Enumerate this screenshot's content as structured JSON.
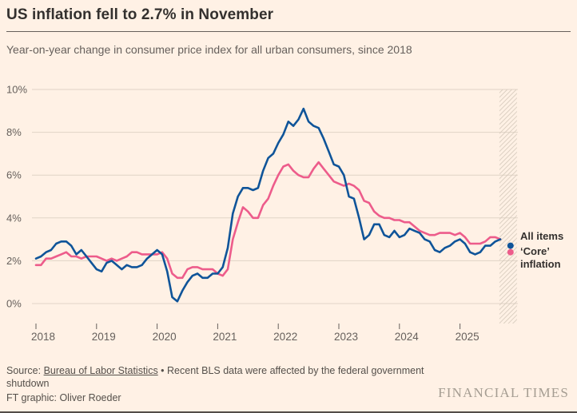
{
  "header": {
    "title": "US inflation fell to 2.7% in November",
    "subtitle": "Year-on-year change in consumer price index for all urban consumers, since 2018"
  },
  "annotations": {
    "all_items": "All items",
    "core": "‘Core’ inflation"
  },
  "footer": {
    "source_prefix": "Source: ",
    "source_link": "Bureau of Labor Statistics",
    "source_rest": " • Recent BLS data were affected by the federal government shutdown",
    "credit": "FT graphic: Oliver Roeder",
    "brand": "FINANCIAL TIMES"
  },
  "chart_data": {
    "type": "line",
    "title": "US inflation fell to 2.7% in November",
    "subtitle": "Year-on-year change in consumer price index for all urban consumers, since 2018",
    "grid": true,
    "legend_position": "right-annotations",
    "colors": {
      "background": "#FFF1E5",
      "gridline": "#E0D4C6",
      "axis": "#66605C",
      "all_items": "#0F5499",
      "core": "#ED5C8B"
    },
    "y_axis": {
      "range": [
        0,
        10
      ],
      "unit": "%",
      "ticks": [
        {
          "value": 0,
          "label": "0%"
        },
        {
          "value": 2,
          "label": "2%"
        },
        {
          "value": 4,
          "label": "4%"
        },
        {
          "value": 6,
          "label": "6%"
        },
        {
          "value": 8,
          "label": "8%"
        },
        {
          "value": 10,
          "label": "10%"
        }
      ]
    },
    "x_axis": {
      "start": 2018,
      "step": 0.0833333,
      "range": [
        2018,
        2025.95
      ],
      "ticks": [
        {
          "value": 2018,
          "label": "2018"
        },
        {
          "value": 2019,
          "label": "2019"
        },
        {
          "value": 2020,
          "label": "2020"
        },
        {
          "value": 2021,
          "label": "2021"
        },
        {
          "value": 2022,
          "label": "2022"
        },
        {
          "value": 2023,
          "label": "2023"
        },
        {
          "value": 2024,
          "label": "2024"
        },
        {
          "value": 2025,
          "label": "2025"
        }
      ]
    },
    "shutdown_band": {
      "x_from": 2025.65,
      "x_to": 2025.94
    },
    "series": [
      {
        "name": "All items",
        "color": "#0F5499",
        "values": [
          2.1,
          2.2,
          2.4,
          2.5,
          2.8,
          2.9,
          2.9,
          2.7,
          2.3,
          2.5,
          2.2,
          1.9,
          1.6,
          1.5,
          1.9,
          2.0,
          1.8,
          1.6,
          1.8,
          1.7,
          1.7,
          1.8,
          2.1,
          2.3,
          2.5,
          2.3,
          1.5,
          0.3,
          0.1,
          0.6,
          1.0,
          1.3,
          1.4,
          1.2,
          1.2,
          1.4,
          1.4,
          1.7,
          2.6,
          4.2,
          5.0,
          5.4,
          5.4,
          5.3,
          5.4,
          6.2,
          6.8,
          7.0,
          7.5,
          7.9,
          8.5,
          8.3,
          8.6,
          9.1,
          8.5,
          8.3,
          8.2,
          7.7,
          7.1,
          6.5,
          6.4,
          6.0,
          5.0,
          4.9,
          4.0,
          3.0,
          3.2,
          3.7,
          3.7,
          3.2,
          3.1,
          3.4,
          3.1,
          3.2,
          3.5,
          3.4,
          3.3,
          3.0,
          2.9,
          2.5,
          2.4,
          2.6,
          2.7,
          2.9,
          3.0,
          2.8,
          2.4,
          2.3,
          2.4,
          2.7,
          2.7,
          2.9,
          3.0
        ],
        "end_point": {
          "x": 2025.8333,
          "value": 2.7
        }
      },
      {
        "name": "‘Core’ inflation",
        "color": "#ED5C8B",
        "values": [
          1.8,
          1.8,
          2.1,
          2.1,
          2.2,
          2.3,
          2.4,
          2.2,
          2.2,
          2.1,
          2.2,
          2.2,
          2.2,
          2.1,
          2.0,
          2.1,
          2.0,
          2.1,
          2.2,
          2.4,
          2.4,
          2.3,
          2.3,
          2.3,
          2.3,
          2.4,
          2.1,
          1.4,
          1.2,
          1.2,
          1.6,
          1.7,
          1.7,
          1.6,
          1.6,
          1.6,
          1.4,
          1.3,
          1.6,
          3.0,
          3.8,
          4.5,
          4.3,
          4.0,
          4.0,
          4.6,
          4.9,
          5.5,
          6.0,
          6.4,
          6.5,
          6.2,
          6.0,
          5.9,
          5.9,
          6.3,
          6.6,
          6.3,
          6.0,
          5.7,
          5.6,
          5.5,
          5.6,
          5.5,
          5.3,
          4.8,
          4.7,
          4.3,
          4.1,
          4.0,
          4.0,
          3.9,
          3.9,
          3.8,
          3.8,
          3.6,
          3.4,
          3.3,
          3.2,
          3.2,
          3.3,
          3.3,
          3.3,
          3.2,
          3.3,
          3.1,
          2.8,
          2.8,
          2.8,
          2.9,
          3.1,
          3.1,
          3.0
        ],
        "end_point": {
          "x": 2025.8333,
          "value": 2.4
        }
      }
    ]
  }
}
